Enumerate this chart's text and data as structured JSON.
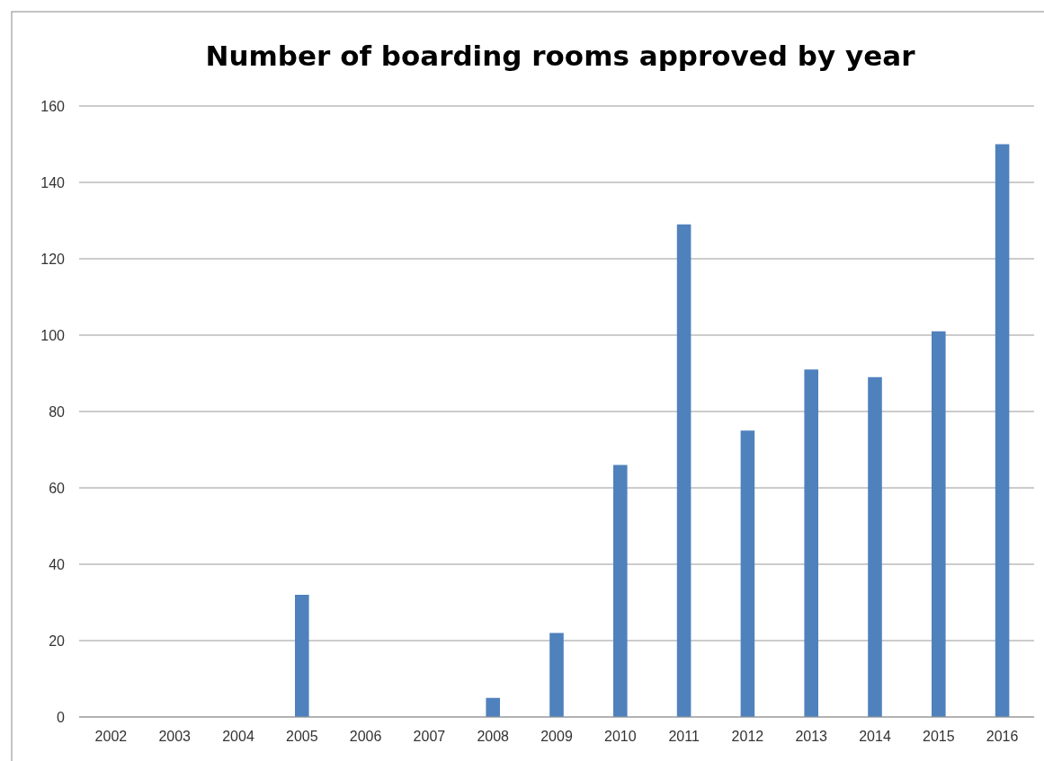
{
  "chart_data": {
    "type": "bar",
    "title": "Number of boarding rooms approved by year",
    "categories": [
      "2002",
      "2003",
      "2004",
      "2005",
      "2006",
      "2007",
      "2008",
      "2009",
      "2010",
      "2011",
      "2012",
      "2013",
      "2014",
      "2015",
      "2016"
    ],
    "values": [
      0,
      0,
      0,
      32,
      0,
      0,
      5,
      22,
      66,
      129,
      75,
      91,
      89,
      101,
      150
    ],
    "color": "#4f81bd",
    "ylim": [
      0,
      160
    ],
    "yticks": [
      0,
      20,
      40,
      60,
      80,
      100,
      120,
      140,
      160
    ],
    "grid": "y"
  }
}
